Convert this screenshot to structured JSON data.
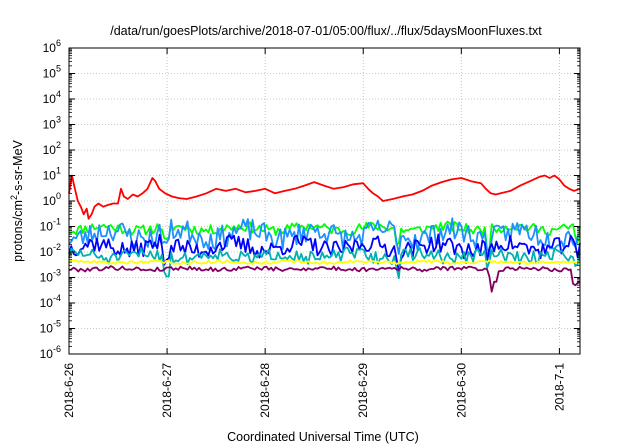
{
  "chart_data": {
    "type": "line",
    "title": "/data/run/goesPlots/archive/2018-07-01/05:00/flux/../flux/5daysMoonFluxes.txt",
    "xlabel": "Coordinated Universal Time (UTC)",
    "ylabel": {
      "before": "protons/cm",
      "sup": "2",
      "after": "-s-sr-MeV"
    },
    "y_scale": "log",
    "ylim_exponents": [
      -6,
      6
    ],
    "y_tick_labels": [
      {
        "base": "10",
        "exp": "6"
      },
      {
        "base": "10",
        "exp": "5"
      },
      {
        "base": "10",
        "exp": "4"
      },
      {
        "base": "10",
        "exp": "3"
      },
      {
        "base": "10",
        "exp": "2"
      },
      {
        "base": "10",
        "exp": "1"
      },
      {
        "base": "10",
        "exp": "0"
      },
      {
        "base": "10",
        "exp": "-1"
      },
      {
        "base": "10",
        "exp": "-2"
      },
      {
        "base": "10",
        "exp": "-3"
      },
      {
        "base": "10",
        "exp": "-4"
      },
      {
        "base": "10",
        "exp": "-5"
      },
      {
        "base": "10",
        "exp": "-6"
      }
    ],
    "x_ticks": [
      {
        "label": "2018-6-26",
        "day": 0
      },
      {
        "label": "2018-6-27",
        "day": 1
      },
      {
        "label": "2018-6-28",
        "day": 2
      },
      {
        "label": "2018-6-29",
        "day": 3
      },
      {
        "label": "2018-6-30",
        "day": 4
      },
      {
        "label": "2018-7-1",
        "day": 5
      }
    ],
    "x_range_days": [
      0,
      5.21
    ],
    "grid": true,
    "legend": "none",
    "series": [
      {
        "color": "#ff0000",
        "values": [
          [
            0.0,
            2.0
          ],
          [
            0.03,
            10.0
          ],
          [
            0.06,
            3.0
          ],
          [
            0.09,
            1.0
          ],
          [
            0.12,
            0.6
          ],
          [
            0.15,
            0.3
          ],
          [
            0.18,
            0.5
          ],
          [
            0.2,
            0.2
          ],
          [
            0.23,
            0.3
          ],
          [
            0.26,
            0.6
          ],
          [
            0.3,
            0.8
          ],
          [
            0.35,
            0.6
          ],
          [
            0.4,
            0.7
          ],
          [
            0.45,
            0.8
          ],
          [
            0.5,
            0.8
          ],
          [
            0.53,
            3.0
          ],
          [
            0.56,
            1.5
          ],
          [
            0.6,
            1.2
          ],
          [
            0.65,
            1.8
          ],
          [
            0.7,
            1.5
          ],
          [
            0.75,
            2.0
          ],
          [
            0.8,
            3.0
          ],
          [
            0.85,
            8.0
          ],
          [
            0.88,
            6.0
          ],
          [
            0.92,
            3.0
          ],
          [
            0.98,
            2.0
          ],
          [
            1.05,
            1.5
          ],
          [
            1.12,
            1.3
          ],
          [
            1.2,
            1.2
          ],
          [
            1.3,
            1.5
          ],
          [
            1.4,
            2.0
          ],
          [
            1.5,
            3.0
          ],
          [
            1.6,
            2.5
          ],
          [
            1.7,
            3.0
          ],
          [
            1.8,
            2.2
          ],
          [
            1.9,
            2.5
          ],
          [
            2.0,
            3.0
          ],
          [
            2.1,
            2.0
          ],
          [
            2.2,
            2.5
          ],
          [
            2.3,
            3.0
          ],
          [
            2.4,
            4.0
          ],
          [
            2.5,
            5.5
          ],
          [
            2.6,
            4.0
          ],
          [
            2.7,
            3.0
          ],
          [
            2.8,
            3.5
          ],
          [
            2.9,
            4.5
          ],
          [
            3.0,
            5.0
          ],
          [
            3.05,
            3.0
          ],
          [
            3.1,
            2.0
          ],
          [
            3.15,
            1.5
          ],
          [
            3.2,
            1.0
          ],
          [
            3.3,
            1.2
          ],
          [
            3.4,
            1.5
          ],
          [
            3.5,
            1.8
          ],
          [
            3.6,
            2.5
          ],
          [
            3.7,
            4.0
          ],
          [
            3.8,
            5.5
          ],
          [
            3.9,
            7.0
          ],
          [
            4.0,
            8.0
          ],
          [
            4.1,
            6.0
          ],
          [
            4.2,
            5.0
          ],
          [
            4.25,
            3.0
          ],
          [
            4.3,
            2.0
          ],
          [
            4.35,
            1.8
          ],
          [
            4.4,
            2.0
          ],
          [
            4.5,
            2.5
          ],
          [
            4.6,
            4.0
          ],
          [
            4.7,
            6.0
          ],
          [
            4.8,
            9.0
          ],
          [
            4.85,
            10.0
          ],
          [
            4.9,
            8.0
          ],
          [
            4.95,
            10.0
          ],
          [
            5.0,
            7.0
          ],
          [
            5.05,
            4.0
          ],
          [
            5.1,
            3.0
          ],
          [
            5.15,
            2.5
          ],
          [
            5.21,
            3.0
          ]
        ]
      },
      {
        "color": "#00ff00",
        "base": 0.085,
        "amplitude": 0.2,
        "points": 220,
        "seed": 11,
        "dips": [
          [
            1.0,
            0.6
          ],
          [
            3.35,
            0.6
          ],
          [
            4.28,
            0.6
          ],
          [
            5.18,
            0.5
          ]
        ]
      },
      {
        "color": "#1e90ff",
        "base": 0.05,
        "amplitude": 0.45,
        "points": 220,
        "seed": 23,
        "dips": [
          [
            1.0,
            0.4
          ],
          [
            3.35,
            0.4
          ],
          [
            4.28,
            0.3
          ],
          [
            5.18,
            0.3
          ]
        ]
      },
      {
        "color": "#0000ff",
        "base": 0.016,
        "amplitude": 0.35,
        "points": 220,
        "seed": 37,
        "dips": [
          [
            1.0,
            0.5
          ],
          [
            3.35,
            0.5
          ],
          [
            4.28,
            0.4
          ],
          [
            5.18,
            0.4
          ]
        ]
      },
      {
        "color": "#00b0b0",
        "base": 0.007,
        "amplitude": 0.25,
        "points": 220,
        "seed": 51,
        "dips": [
          [
            1.0,
            0.6
          ],
          [
            3.35,
            0.6
          ],
          [
            4.28,
            0.5
          ],
          [
            5.18,
            0.5
          ]
        ]
      },
      {
        "color": "#ffff00",
        "base": 0.004,
        "amplitude": 0.06,
        "points": 220,
        "seed": 63,
        "dips": []
      },
      {
        "color": "#800060",
        "base": 0.0022,
        "amplitude": 0.08,
        "points": 220,
        "seed": 79,
        "dips": [
          [
            4.3,
            0.3
          ],
          [
            4.34,
            0.5
          ],
          [
            5.15,
            0.6
          ],
          [
            5.2,
            0.5
          ]
        ]
      }
    ]
  }
}
